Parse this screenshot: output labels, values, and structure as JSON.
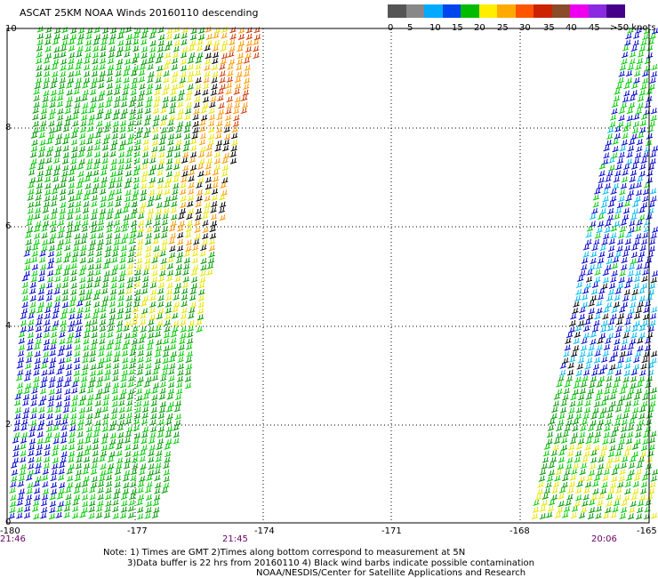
{
  "title": "ASCAT 25KM NOAA Winds 20160110 descending",
  "legend": {
    "labels": [
      "0",
      "5",
      "10",
      "15",
      "20",
      "25",
      "30",
      "35",
      "40",
      "45",
      ">50 knots"
    ],
    "colors": [
      "#555555",
      "#888888",
      "#00aaff",
      "#0044ee",
      "#00bb00",
      "#ffee00",
      "#ffaa00",
      "#ff5500",
      "#cc2200",
      "#8b4a2a",
      "#ee00ee",
      "#8a2be2",
      "#440088"
    ]
  },
  "axes": {
    "y_ticks": [
      "10",
      "8",
      "6",
      "4",
      "2",
      "0"
    ],
    "x_ticks": [
      "-180",
      "-177",
      "-174",
      "-171",
      "-168",
      "-165"
    ]
  },
  "times": [
    "21:46",
    "21:45",
    "20:06"
  ],
  "notes": [
    "Note: 1) Times are GMT 2)Times along bottom correspond to measurement at 5N",
    "3)Data buffer is 22 hrs from 20160110 4) Black wind barbs indicate possible contamination",
    "NOAA/NESDIS/Center for Satellite Applications and Research"
  ],
  "wind_colors": {
    "calm": "#0000cc",
    "light": "#00cc00",
    "moderate": "#009900",
    "fresh": "#e6e600",
    "strong": "#ff9900",
    "gale": "#cc3300",
    "contaminated": "#000000",
    "cyan": "#00bbee"
  }
}
